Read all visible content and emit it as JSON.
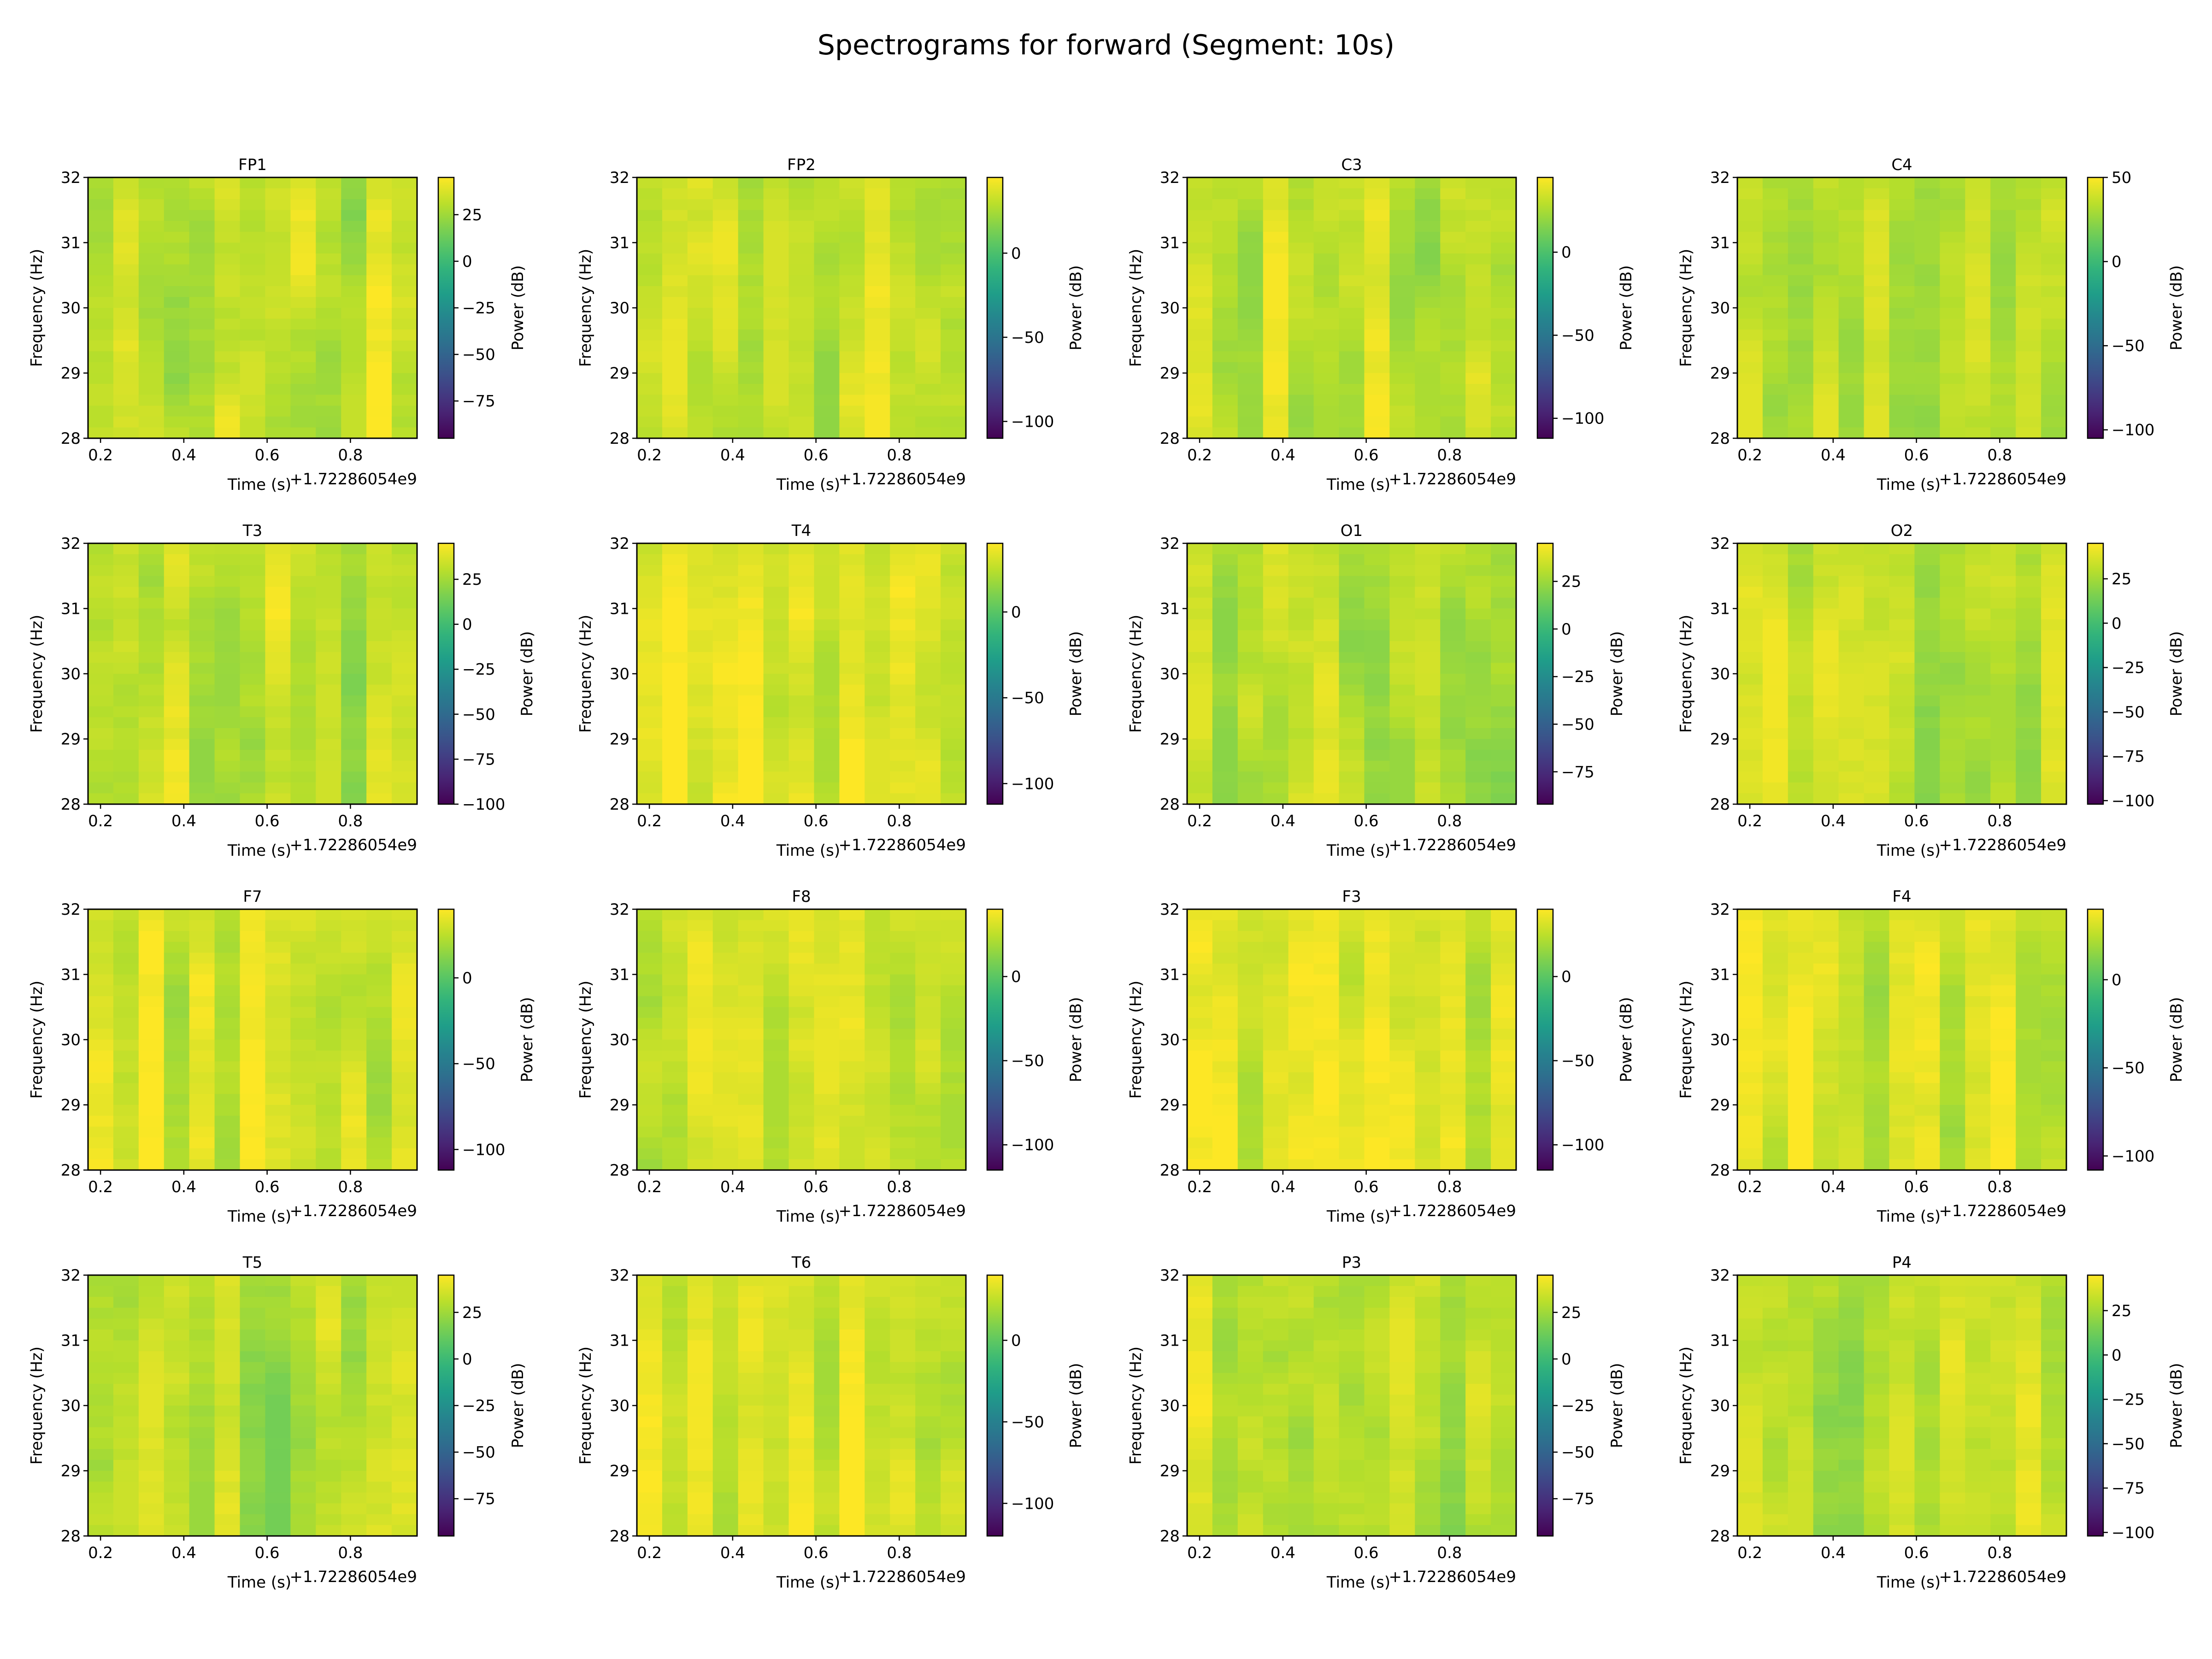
{
  "title": "Spectrograms for forward (Segment: 10s)",
  "chart_data": {
    "type": "heatmap",
    "colormap": "viridis",
    "layout": "4x4 grid",
    "xlabel": "Time (s)",
    "x_offset_text": "+1.72286054e9",
    "ylabel": "Frequency (Hz)",
    "colorbar_label": "Power (dB)",
    "xlim": [
      0.17,
      0.96
    ],
    "ylim": [
      28,
      32
    ],
    "xticks": [
      "0.2",
      "0.4",
      "0.6",
      "0.8"
    ],
    "yticks": [
      "28",
      "29",
      "30",
      "31",
      "32"
    ],
    "typical_power_range_db": [
      10,
      45
    ],
    "panels": [
      {
        "title": "FP1",
        "clim": [
          -95,
          45
        ],
        "cticks": [
          25,
          0,
          -25,
          -50,
          -75
        ]
      },
      {
        "title": "FP2",
        "clim": [
          -110,
          45
        ],
        "cticks": [
          0,
          -50,
          -100
        ]
      },
      {
        "title": "C3",
        "clim": [
          -112,
          45
        ],
        "cticks": [
          0,
          -50,
          -100
        ]
      },
      {
        "title": "C4",
        "clim": [
          -105,
          50
        ],
        "cticks": [
          50,
          0,
          -50,
          -100
        ]
      },
      {
        "title": "T3",
        "clim": [
          -100,
          45
        ],
        "cticks": [
          25,
          0,
          -25,
          -50,
          -75,
          -100
        ]
      },
      {
        "title": "T4",
        "clim": [
          -112,
          40
        ],
        "cticks": [
          0,
          -50,
          -100
        ]
      },
      {
        "title": "O1",
        "clim": [
          -92,
          45
        ],
        "cticks": [
          25,
          0,
          -25,
          -50,
          -75
        ]
      },
      {
        "title": "O2",
        "clim": [
          -102,
          45
        ],
        "cticks": [
          25,
          0,
          -25,
          -50,
          -75,
          -100
        ]
      },
      {
        "title": "F7",
        "clim": [
          -112,
          40
        ],
        "cticks": [
          0,
          -50,
          -100
        ]
      },
      {
        "title": "F8",
        "clim": [
          -115,
          40
        ],
        "cticks": [
          0,
          -50,
          -100
        ]
      },
      {
        "title": "F3",
        "clim": [
          -115,
          40
        ],
        "cticks": [
          0,
          -50,
          -100
        ]
      },
      {
        "title": "F4",
        "clim": [
          -108,
          40
        ],
        "cticks": [
          0,
          -50,
          -100
        ]
      },
      {
        "title": "T5",
        "clim": [
          -95,
          45
        ],
        "cticks": [
          25,
          0,
          -25,
          -50,
          -75
        ]
      },
      {
        "title": "T6",
        "clim": [
          -120,
          40
        ],
        "cticks": [
          0,
          -50,
          -100
        ]
      },
      {
        "title": "P3",
        "clim": [
          -95,
          45
        ],
        "cticks": [
          25,
          0,
          -25,
          -50,
          -75
        ]
      },
      {
        "title": "P4",
        "clim": [
          -102,
          45
        ],
        "cticks": [
          25,
          0,
          -25,
          -50,
          -75,
          -100
        ]
      }
    ]
  }
}
